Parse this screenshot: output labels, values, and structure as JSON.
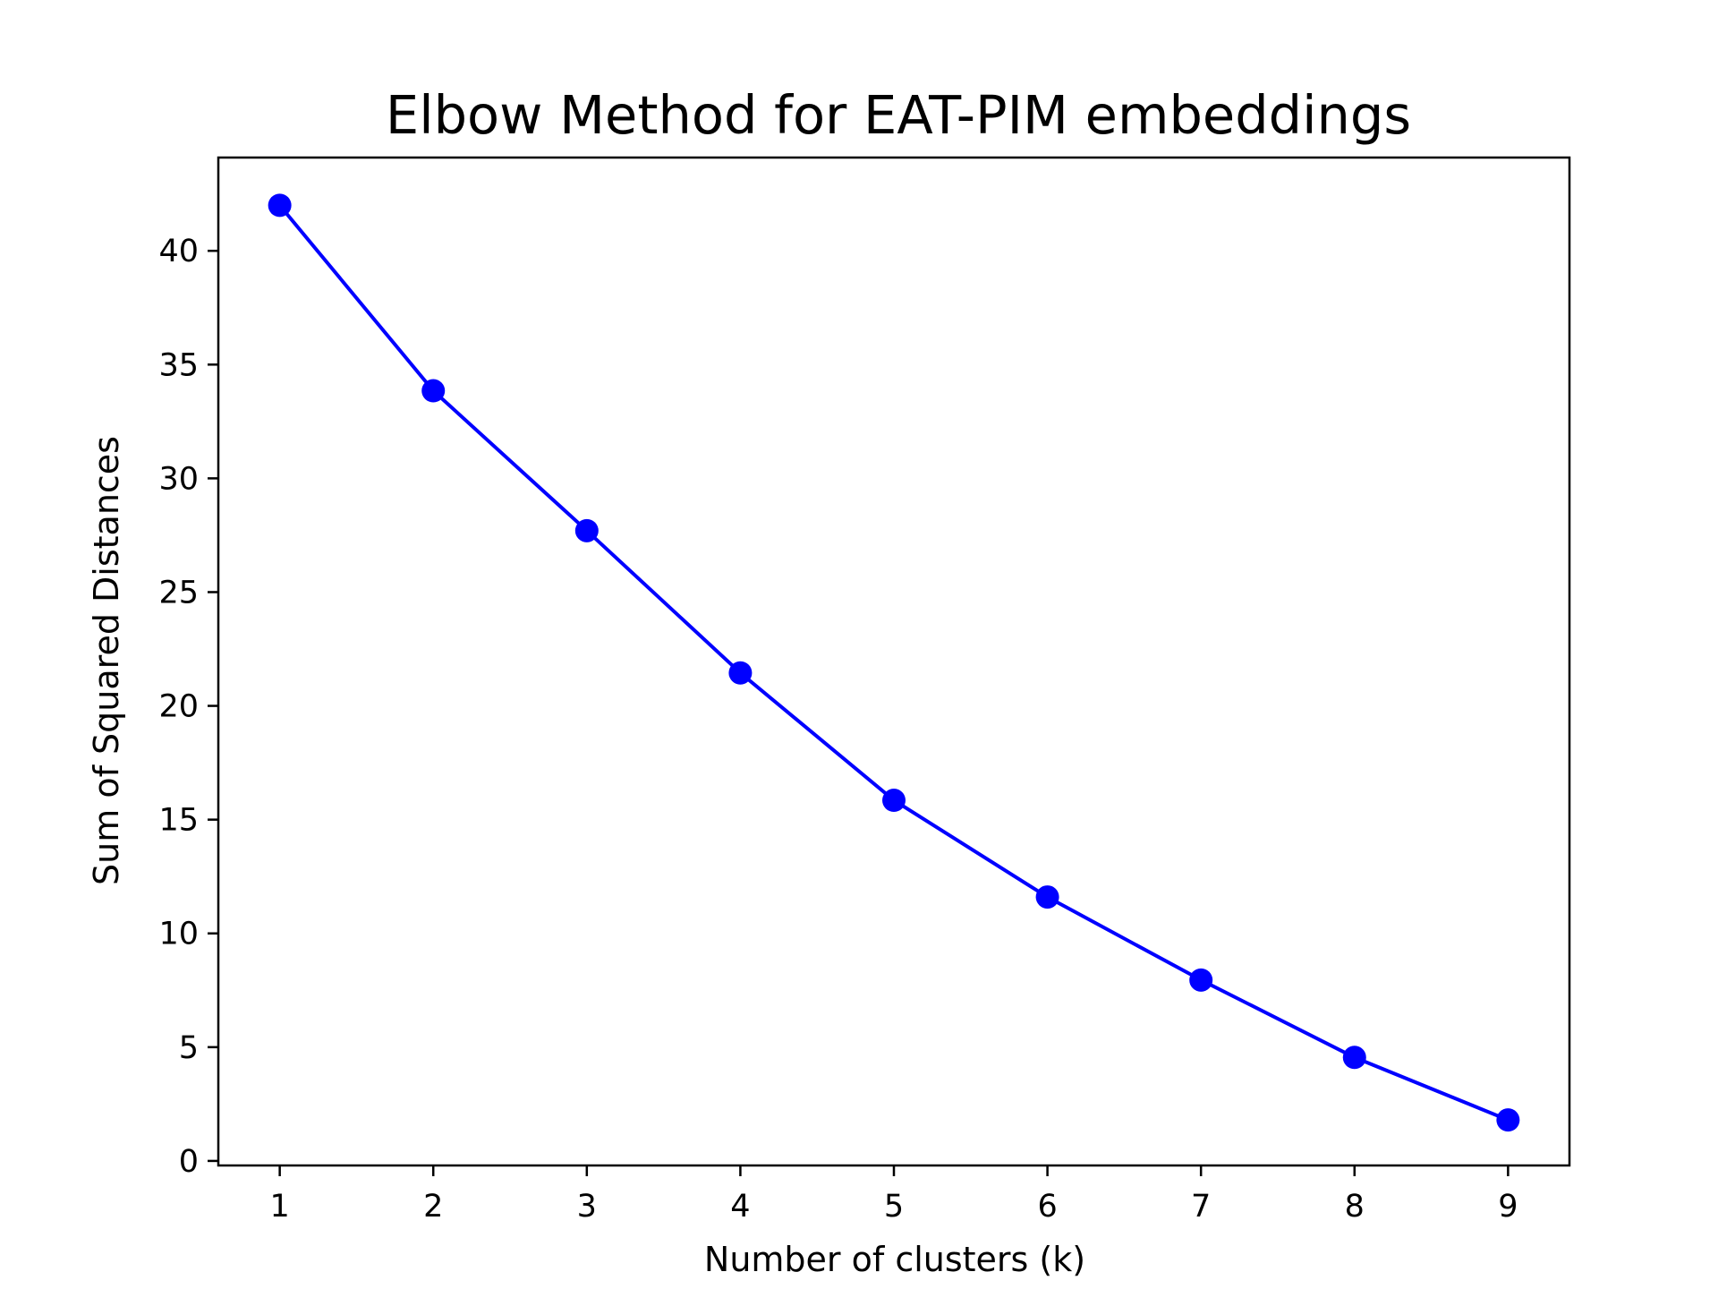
{
  "chart_data": {
    "type": "line",
    "title": "Elbow Method for EAT-PIM embeddings",
    "xlabel": "Number of clusters (k)",
    "ylabel": "Sum of Squared Distances",
    "x": [
      1,
      2,
      3,
      4,
      5,
      6,
      7,
      8,
      9
    ],
    "series": [
      {
        "values": [
          42.0,
          33.85,
          27.7,
          21.45,
          15.85,
          11.6,
          7.95,
          4.55,
          1.8
        ],
        "color": "#0000ff",
        "marker": "circle"
      }
    ],
    "xticks": [
      "1",
      "2",
      "3",
      "4",
      "5",
      "6",
      "7",
      "8",
      "9"
    ],
    "yticks": [
      "0",
      "5",
      "10",
      "15",
      "20",
      "25",
      "30",
      "35",
      "40"
    ],
    "xlim": [
      0.6,
      9.4
    ],
    "ylim": [
      -0.2,
      44.1
    ],
    "grid": false,
    "legend": "none"
  }
}
